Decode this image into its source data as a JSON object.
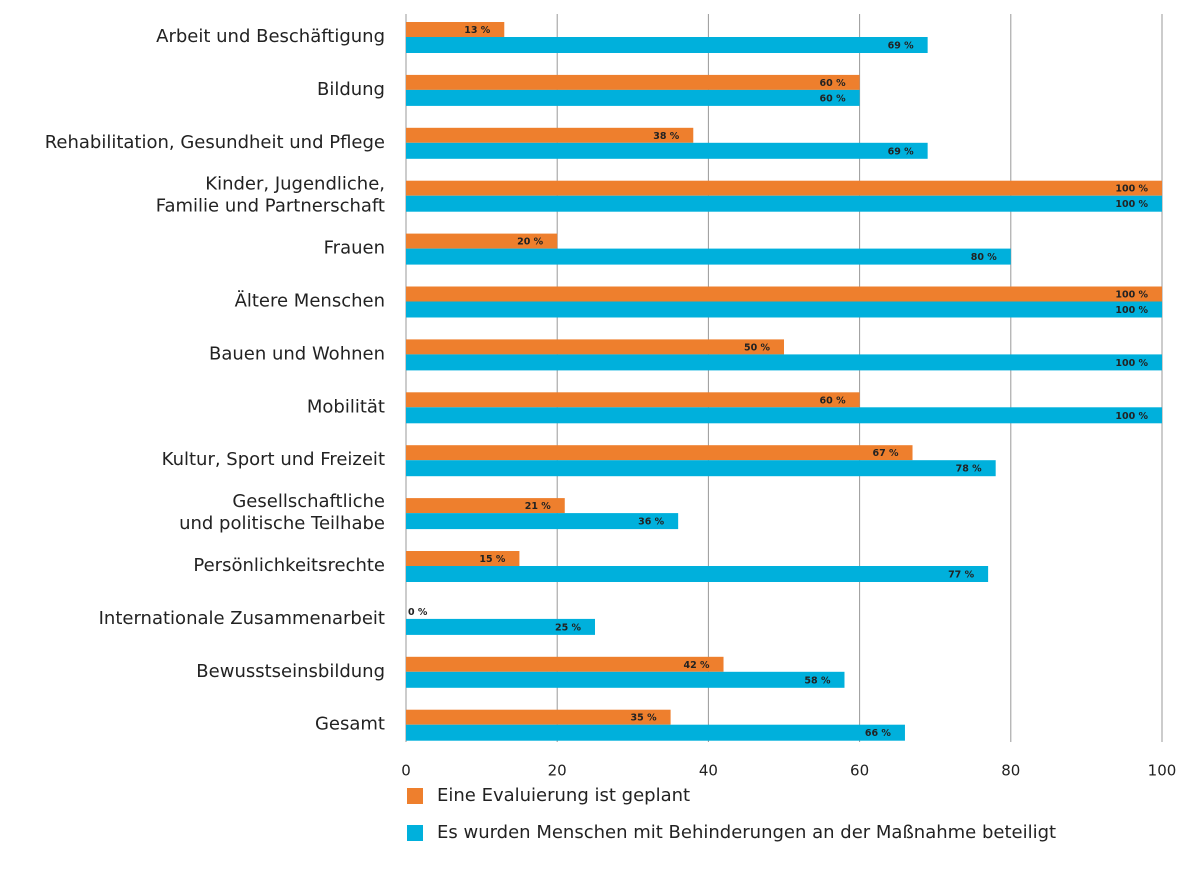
{
  "chart_data": {
    "type": "barh",
    "categories": [
      "Arbeit und Beschäftigung",
      "Bildung",
      "Rehabilitation, Gesundheit und Pflege",
      "Kinder, Jugendliche,\nFamilie und Partnerschaft",
      "Frauen",
      "Ältere Menschen",
      "Bauen und Wohnen",
      "Mobilität",
      "Kultur, Sport und Freizeit",
      "Gesellschaftliche\nund politische Teilhabe",
      "Persönlichkeitsrechte",
      "Internationale Zusammenarbeit",
      "Bewusstseinsbildung",
      "Gesamt"
    ],
    "series": [
      {
        "name": "Eine Evaluierung ist geplant",
        "color": "#ee7f2d",
        "values": [
          13,
          60,
          38,
          100,
          20,
          100,
          50,
          60,
          67,
          21,
          15,
          0,
          42,
          35
        ],
        "value_labels": [
          "13 %",
          "60 %",
          "38 %",
          "100 %",
          "20 %",
          "100 %",
          "50 %",
          "60 %",
          "67 %",
          "21 %",
          "15 %",
          "0 %",
          "42 %",
          "35 %"
        ]
      },
      {
        "name": "Es wurden Menschen mit Behinderungen an der Maßnahme beteiligt",
        "color": "#00b0dc",
        "values": [
          69,
          60,
          69,
          100,
          80,
          100,
          100,
          100,
          78,
          36,
          77,
          25,
          58,
          66
        ],
        "value_labels": [
          "69 %",
          "60 %",
          "69 %",
          "100 %",
          "80 %",
          "100 %",
          "100 %",
          "100 %",
          "78 %",
          "36 %",
          "77 %",
          "25 %",
          "58 %",
          "66 %"
        ]
      }
    ],
    "xlim": [
      0,
      100
    ],
    "xticks": [
      0,
      20,
      40,
      60,
      80,
      100
    ],
    "grid": true
  }
}
